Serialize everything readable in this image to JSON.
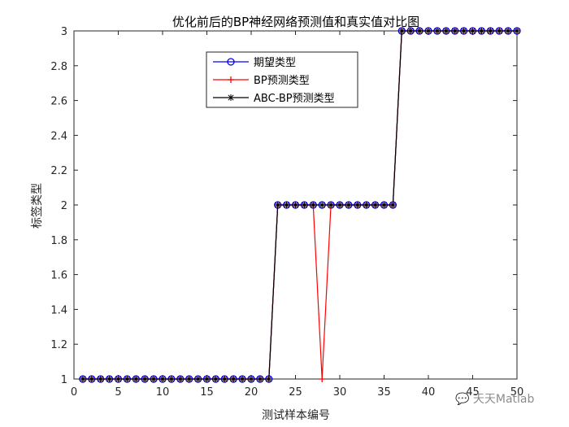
{
  "chart_data": {
    "type": "line",
    "title": "优化前后的BP神经网络预测值和真实值对比图",
    "xlabel": "测试样本编号",
    "ylabel": "标签类型",
    "xlim": [
      0,
      50
    ],
    "ylim": [
      1,
      3
    ],
    "xticks": [
      "0",
      "5",
      "10",
      "15",
      "20",
      "25",
      "30",
      "35",
      "40",
      "45",
      "50"
    ],
    "yticks": [
      "1",
      "1.2",
      "1.4",
      "1.6",
      "1.8",
      "2",
      "2.2",
      "2.4",
      "2.6",
      "2.8",
      "3"
    ],
    "legend_position": "top-center",
    "grid": false,
    "x": [
      1,
      2,
      3,
      4,
      5,
      6,
      7,
      8,
      9,
      10,
      11,
      12,
      13,
      14,
      15,
      16,
      17,
      18,
      19,
      20,
      21,
      22,
      23,
      24,
      25,
      26,
      27,
      28,
      29,
      30,
      31,
      32,
      33,
      34,
      35,
      36,
      37,
      38,
      39,
      40,
      41,
      42,
      43,
      44,
      45,
      46,
      47,
      48,
      49,
      50
    ],
    "series": [
      {
        "name": "期望类型",
        "color": "#0000ff",
        "marker": "circle",
        "values": [
          1,
          1,
          1,
          1,
          1,
          1,
          1,
          1,
          1,
          1,
          1,
          1,
          1,
          1,
          1,
          1,
          1,
          1,
          1,
          1,
          1,
          1,
          2,
          2,
          2,
          2,
          2,
          2,
          2,
          2,
          2,
          2,
          2,
          2,
          2,
          2,
          3,
          3,
          3,
          3,
          3,
          3,
          3,
          3,
          3,
          3,
          3,
          3,
          3,
          3
        ]
      },
      {
        "name": "BP预测类型",
        "color": "#ff0000",
        "marker": "plus",
        "values": [
          1,
          1,
          1,
          1,
          1,
          1,
          1,
          1,
          1,
          1,
          1,
          1,
          1,
          1,
          1,
          1,
          1,
          1,
          1,
          1,
          1,
          1,
          2,
          2,
          2,
          2,
          2,
          1,
          2,
          2,
          2,
          2,
          2,
          2,
          2,
          2,
          3,
          3,
          3,
          3,
          3,
          3,
          3,
          3,
          3,
          3,
          3,
          3,
          3,
          3
        ]
      },
      {
        "name": "ABC-BP预测类型",
        "color": "#000000",
        "marker": "star",
        "values": [
          1,
          1,
          1,
          1,
          1,
          1,
          1,
          1,
          1,
          1,
          1,
          1,
          1,
          1,
          1,
          1,
          1,
          1,
          1,
          1,
          1,
          1,
          2,
          2,
          2,
          2,
          2,
          2,
          2,
          2,
          2,
          2,
          2,
          2,
          2,
          2,
          3,
          3,
          3,
          3,
          3,
          3,
          3,
          3,
          3,
          3,
          3,
          3,
          3,
          3
        ]
      }
    ]
  },
  "watermark": {
    "icon": "wechat-icon",
    "text": "天天Matlab"
  }
}
